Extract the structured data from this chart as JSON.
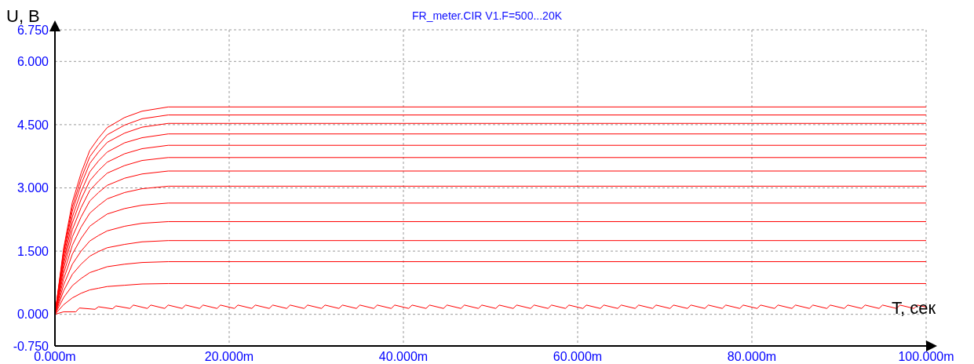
{
  "chart_data": {
    "type": "line",
    "title": "FR_meter.CIR V1.F=500...20K",
    "xlabel": "T, сек",
    "ylabel": "U, В",
    "xlim": [
      0,
      100
    ],
    "xticks": [
      {
        "value": 0,
        "label": "0.000m"
      },
      {
        "value": 20,
        "label": "20.000m"
      },
      {
        "value": 40,
        "label": "40.000m"
      },
      {
        "value": 60,
        "label": "60.000m"
      },
      {
        "value": 80,
        "label": "80.000m"
      },
      {
        "value": 100,
        "label": "100.000m"
      }
    ],
    "ylim": [
      -0.75,
      6.75
    ],
    "yticks": [
      {
        "value": -0.75,
        "label": "-0.750"
      },
      {
        "value": 0,
        "label": "0.000"
      },
      {
        "value": 1.5,
        "label": "1.500"
      },
      {
        "value": 3,
        "label": "3.000"
      },
      {
        "value": 4.5,
        "label": "4.500"
      },
      {
        "value": 6,
        "label": "6.000"
      },
      {
        "value": 6.75,
        "label": "6.750"
      }
    ],
    "grid": true,
    "marker": "none",
    "line_style": "solid",
    "x": [
      0,
      1,
      2,
      3,
      4,
      5,
      6,
      8,
      10,
      13,
      100
    ],
    "series": [
      {
        "color": "#ff0000",
        "values": [
          0,
          1.57,
          2.66,
          3.35,
          3.89,
          4.18,
          4.43,
          4.67,
          4.82,
          4.92,
          4.92
        ]
      },
      {
        "color": "#ff0000",
        "values": [
          0,
          1.51,
          2.55,
          3.22,
          3.74,
          4.02,
          4.26,
          4.49,
          4.64,
          4.73,
          4.73
        ]
      },
      {
        "color": "#ff0000",
        "values": [
          0,
          1.45,
          2.45,
          3.08,
          3.58,
          3.85,
          4.08,
          4.3,
          4.44,
          4.53,
          4.53
        ]
      },
      {
        "color": "#ff0000",
        "values": [
          0,
          1.37,
          2.31,
          2.91,
          3.38,
          3.64,
          3.85,
          4.07,
          4.19,
          4.28,
          4.28
        ]
      },
      {
        "color": "#ff0000",
        "values": [
          0,
          1.28,
          2.17,
          2.73,
          3.17,
          3.41,
          3.61,
          3.81,
          3.93,
          4.01,
          4.01
        ]
      },
      {
        "color": "#ff0000",
        "values": [
          0,
          1.19,
          2.01,
          2.53,
          2.94,
          3.16,
          3.35,
          3.53,
          3.65,
          3.72,
          3.72
        ]
      },
      {
        "color": "#ff0000",
        "values": [
          0,
          1.09,
          1.84,
          2.31,
          2.69,
          2.89,
          3.06,
          3.23,
          3.33,
          3.4,
          3.4
        ]
      },
      {
        "color": "#ff0000",
        "values": [
          0,
          0.97,
          1.64,
          2.07,
          2.4,
          2.58,
          2.74,
          2.89,
          2.98,
          3.04,
          3.04
        ]
      },
      {
        "color": "#ff0000",
        "values": [
          0,
          0.84,
          1.43,
          1.8,
          2.09,
          2.24,
          2.38,
          2.51,
          2.59,
          2.64,
          2.64
        ]
      },
      {
        "color": "#ff0000",
        "values": [
          0,
          0.7,
          1.19,
          1.5,
          1.74,
          1.87,
          1.98,
          2.09,
          2.16,
          2.2,
          2.2
        ]
      },
      {
        "color": "#ff0000",
        "values": [
          0,
          0.56,
          0.95,
          1.19,
          1.38,
          1.49,
          1.58,
          1.66,
          1.72,
          1.75,
          1.75
        ]
      },
      {
        "color": "#ff0000",
        "values": [
          0,
          0.4,
          0.68,
          0.85,
          0.99,
          1.06,
          1.13,
          1.19,
          1.23,
          1.25,
          1.25
        ]
      },
      {
        "color": "#ff0000",
        "values": [
          0,
          0.23,
          0.39,
          0.5,
          0.58,
          0.62,
          0.66,
          0.69,
          0.72,
          0.73,
          0.73
        ]
      },
      {
        "color": "#ff0000",
        "x": [
          0,
          1,
          2.4,
          2.8,
          4.6,
          5,
          6.6,
          7,
          8.6,
          9,
          10.6,
          11,
          12.6,
          13,
          14.6,
          15,
          16.6,
          17,
          18.6,
          19,
          20.6,
          21,
          22.6,
          23,
          24.6,
          25,
          26.6,
          27,
          28.6,
          29,
          30.6,
          31,
          32.6,
          33,
          34.6,
          35,
          36.6,
          37,
          38.6,
          39,
          40.6,
          41,
          42.6,
          43,
          44.6,
          45,
          46.6,
          47,
          48.6,
          49,
          50.6,
          51,
          52.6,
          53,
          54.6,
          55,
          56.6,
          57,
          58.6,
          59,
          60.6,
          61,
          62.6,
          63,
          64.6,
          65,
          66.6,
          67,
          68.6,
          69,
          70.6,
          71,
          72.6,
          73,
          74.6,
          75,
          76.6,
          77,
          78.6,
          79,
          80.6,
          81,
          82.6,
          83,
          84.6,
          85,
          86.6,
          87,
          88.6,
          89,
          90.6,
          91,
          92.6,
          93,
          94.6,
          95,
          96.6,
          97,
          98.6,
          99,
          100
        ],
        "values": [
          0,
          0.06,
          0.06,
          0.15,
          0.12,
          0.18,
          0.13,
          0.2,
          0.14,
          0.22,
          0.14,
          0.22,
          0.14,
          0.22,
          0.14,
          0.22,
          0.14,
          0.22,
          0.14,
          0.22,
          0.14,
          0.22,
          0.14,
          0.22,
          0.14,
          0.22,
          0.14,
          0.22,
          0.14,
          0.22,
          0.14,
          0.22,
          0.14,
          0.22,
          0.14,
          0.22,
          0.14,
          0.22,
          0.14,
          0.22,
          0.14,
          0.22,
          0.14,
          0.22,
          0.14,
          0.22,
          0.14,
          0.22,
          0.14,
          0.22,
          0.14,
          0.22,
          0.14,
          0.22,
          0.14,
          0.22,
          0.14,
          0.22,
          0.14,
          0.22,
          0.14,
          0.22,
          0.14,
          0.22,
          0.14,
          0.22,
          0.14,
          0.22,
          0.14,
          0.22,
          0.14,
          0.22,
          0.14,
          0.22,
          0.14,
          0.22,
          0.14,
          0.22,
          0.14,
          0.22,
          0.14,
          0.22,
          0.14,
          0.22,
          0.14,
          0.22,
          0.14,
          0.22,
          0.14,
          0.22,
          0.14,
          0.22,
          0.14,
          0.22,
          0.14,
          0.22,
          0.14,
          0.22,
          0.14,
          0.22,
          0.17
        ]
      }
    ]
  }
}
